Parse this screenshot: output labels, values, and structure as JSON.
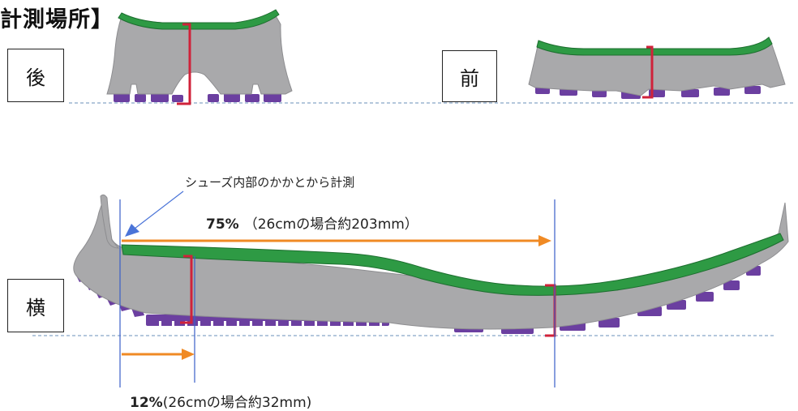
{
  "title": "計測場所】",
  "labels": {
    "rear": "後",
    "front": "前",
    "side": "横"
  },
  "note": "シューズ内部のかかとから計測",
  "measure_75": {
    "percent": "75%",
    "detail": "（26cmの場合約203mm）"
  },
  "measure_12": {
    "percent": "12%",
    "detail": "(26cmの場合約32mm)"
  },
  "colors": {
    "midsole": "#a9a9ab",
    "insole": "#2e9a44",
    "outsole": "#6b3fa0",
    "marker": "#d0223a",
    "arrow": "#f08a24",
    "guide": "#3a5fc8",
    "ground": "#6a8fb8"
  }
}
